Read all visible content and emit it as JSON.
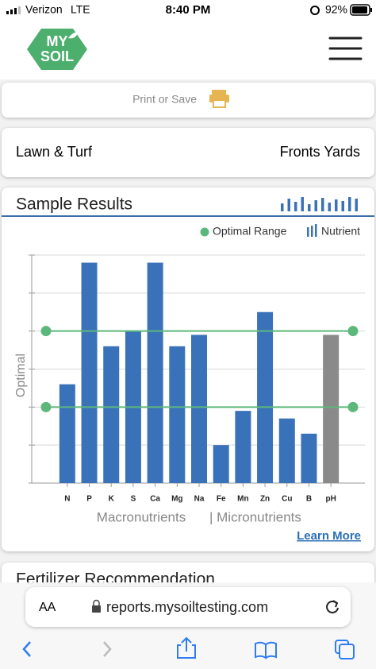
{
  "status_bar": {
    "carrier": "Verizon",
    "network": "LTE",
    "time": "8:40 PM",
    "battery": "92%"
  },
  "header": {
    "logo_line1": "MY",
    "logo_line2": "SOIL"
  },
  "print_button": "Print or Save",
  "site_card": {
    "type": "Lawn & Turf",
    "location": "Fronts Yards"
  },
  "chart_data": {
    "type": "bar",
    "title": "Sample Results",
    "ylabel": "Optimal",
    "categories": [
      "N",
      "P",
      "K",
      "S",
      "Ca",
      "Mg",
      "Na",
      "Fe",
      "Mn",
      "Zn",
      "Cu",
      "B",
      "pH"
    ],
    "values": [
      2.6,
      5.8,
      3.6,
      4.0,
      5.8,
      3.6,
      3.9,
      1.0,
      1.9,
      4.5,
      1.7,
      1.3,
      3.9
    ],
    "colors": [
      "#3a72b9",
      "#3a72b9",
      "#3a72b9",
      "#3a72b9",
      "#3a72b9",
      "#3a72b9",
      "#3a72b9",
      "#3a72b9",
      "#3a72b9",
      "#3a72b9",
      "#3a72b9",
      "#3a72b9",
      "#8a8a8a"
    ],
    "optimal_range": [
      2,
      4
    ],
    "optimal_color": "#5cb87a",
    "ylim": [
      0,
      6
    ],
    "yticks": [
      0,
      1,
      2,
      3,
      4,
      5,
      6
    ],
    "grid": true,
    "legend": {
      "optimal": "Optimal Range",
      "nutrient": "Nutrient"
    },
    "group_labels": [
      "Macronutrients",
      "| Micronutrients"
    ],
    "link": "Learn More"
  },
  "next_card_title": "Fertilizer Recommendation",
  "browser": {
    "text_size": "AA",
    "url": "reports.mysoiltesting.com"
  }
}
